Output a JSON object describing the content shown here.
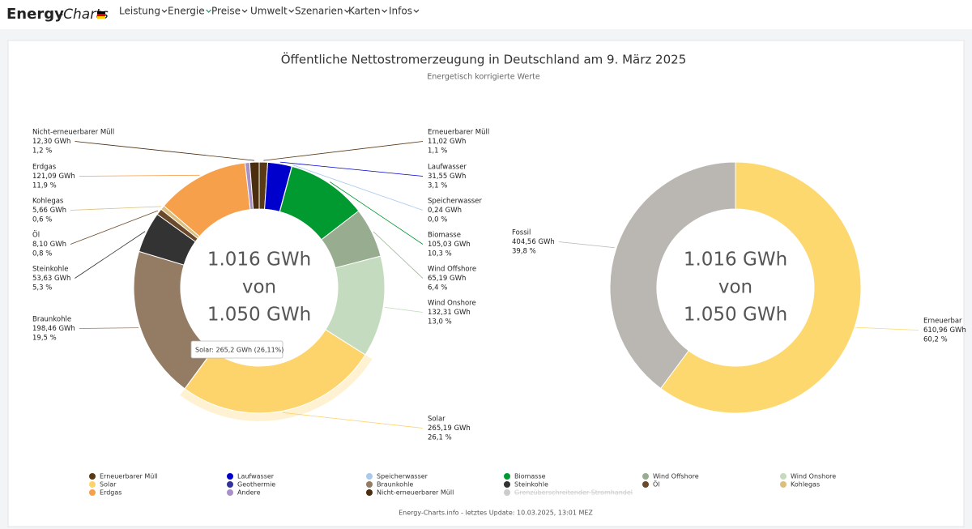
{
  "nav": {
    "logo": "Energy",
    "logo_suffix": "-Charts",
    "menu": [
      "Leistung",
      "Energie",
      "Preise",
      "Umwelt",
      "Szenarien",
      "Karten",
      "Infos"
    ],
    "active": 1
  },
  "title": "Öffentliche Nettostromerzeugung in Deutschland am 9. März 2025",
  "subtitle": "Energetisch korrigierte Werte",
  "chart_data": [
    {
      "type": "pie",
      "categories": [
        "Erneuerbarer Müll",
        "Laufwasser",
        "Speicherwasser",
        "Biomasse",
        "Wind Offshore",
        "Wind Onshore",
        "Solar",
        "Geothermie",
        "Braunkohle",
        "Steinkohle",
        "Öl",
        "Kohlegas",
        "Erdgas",
        "Andere",
        "Nicht-erneuerbarer Müll",
        "Grenzüberschreitender Stromhandel"
      ],
      "values": [
        11.02,
        31.55,
        0.24,
        105.03,
        65.19,
        132.31,
        265.19,
        0.2,
        198.46,
        53.63,
        8.1,
        5.66,
        121.09,
        6,
        12.3,
        null
      ],
      "value_labels": [
        "11,02 GWh",
        "31,55 GWh",
        "0,24 GWh",
        "105,03 GWh",
        "65,19 GWh",
        "132,31 GWh",
        "265,19 GWh",
        null,
        "198,46 GWh",
        "53,63 GWh",
        "8,10 GWh",
        "5,66 GWh",
        "121,09 GWh",
        null,
        "12,30 GWh",
        null
      ],
      "percent_labels": [
        "1,1 %",
        "3,1 %",
        "0,0 %",
        "10,3 %",
        "6,4 %",
        "13,0 %",
        "26,1 %",
        null,
        "19,5 %",
        "5,3 %",
        "0,8 %",
        "0,6 %",
        "11,9 %",
        null,
        "1,2 %",
        null
      ],
      "colors": [
        "#5a3a14",
        "#0000cc",
        "#a9c9ef",
        "#009a31",
        "#98ad8f",
        "#c5dbbf",
        "#fdd46b",
        "#333399",
        "#947b64",
        "#333333",
        "#6b4a2b",
        "#dcbf7c",
        "#f7a04c",
        "#a890c8",
        "#4a2e0e",
        "#cccccc"
      ],
      "visible": [
        true,
        true,
        true,
        true,
        true,
        true,
        true,
        true,
        true,
        true,
        true,
        true,
        true,
        true,
        true,
        false
      ],
      "center_text": [
        "1.016 GWh",
        "von",
        "1.050 GWh"
      ],
      "tooltip": "Solar: 265,2 GWh (26,11%)",
      "hover_index": 6,
      "legend": "bottom"
    },
    {
      "type": "pie",
      "categories": [
        "Erneuerbar",
        "Fossil"
      ],
      "values": [
        610.96,
        404.56
      ],
      "value_labels": [
        "610,96 GWh",
        "404,56 GWh"
      ],
      "percent_labels": [
        "60,2 %",
        "39,8 %"
      ],
      "colors": [
        "#fdd86f",
        "#bab6b2"
      ],
      "center_text": [
        "1.016 GWh",
        "von",
        "1.050 GWh"
      ]
    }
  ],
  "footer": "Energy-Charts.info - letztes Update: 10.03.2025, 13:01 MEZ"
}
